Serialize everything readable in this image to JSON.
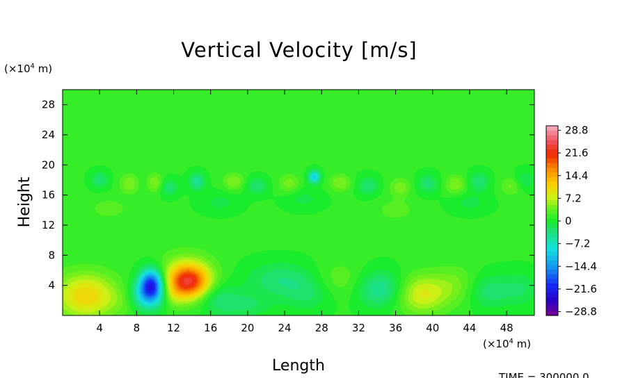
{
  "chart_data": {
    "type": "heatmap",
    "title": "Vertical Velocity [m/s]",
    "xlabel": "Length",
    "ylabel": "Height",
    "x_unit_prefix": "(×10",
    "x_unit_exp": "4",
    "x_unit_suffix": " m)",
    "y_unit_prefix": "(×10",
    "y_unit_exp": "4",
    "y_unit_suffix": " m)",
    "xlim": [
      0,
      51
    ],
    "ylim": [
      0,
      30
    ],
    "x_ticks": [
      4,
      8,
      12,
      16,
      20,
      24,
      28,
      32,
      36,
      40,
      44,
      48
    ],
    "y_ticks": [
      4,
      8,
      12,
      16,
      20,
      24,
      28
    ],
    "colorbar": {
      "min": -28.8,
      "max": 28.8,
      "levels": 41,
      "tick_labels": [
        "28.8",
        "21.6",
        "14.4",
        "7.2",
        "0",
        "−7.2",
        "−14.4",
        "−21.6",
        "−28.8"
      ]
    },
    "features": [
      {
        "x": 2.5,
        "y": 2.6,
        "value": 9.5,
        "sx": 2.3,
        "sy": 2.1
      },
      {
        "x": 9.6,
        "y": 4.2,
        "value": -19,
        "sx": 0.9,
        "sy": 1.4
      },
      {
        "x": 9.2,
        "y": 2.6,
        "value": -10,
        "sx": 1.4,
        "sy": 1.4
      },
      {
        "x": 13.6,
        "y": 4.5,
        "value": 17,
        "sx": 1.5,
        "sy": 1.5
      },
      {
        "x": 13.4,
        "y": 5.2,
        "value": 5,
        "sx": 2.2,
        "sy": 2.2
      },
      {
        "x": 11.8,
        "y": 2.6,
        "value": 3,
        "sx": 1.0,
        "sy": 1.2
      },
      {
        "x": 7.0,
        "y": 2.0,
        "value": 2,
        "sx": 1.4,
        "sy": 1.5
      },
      {
        "x": 16.8,
        "y": 2.2,
        "value": -4,
        "sx": 1.5,
        "sy": 1.5
      },
      {
        "x": 20.0,
        "y": 1.4,
        "value": -3,
        "sx": 1.8,
        "sy": 1.2
      },
      {
        "x": 23.5,
        "y": 4.8,
        "value": -4,
        "sx": 2.6,
        "sy": 1.6
      },
      {
        "x": 26.5,
        "y": 2.8,
        "value": -3,
        "sx": 2.0,
        "sy": 1.6
      },
      {
        "x": 30.0,
        "y": 4.6,
        "value": 2.5,
        "sx": 2.0,
        "sy": 1.8
      },
      {
        "x": 34.3,
        "y": 3.5,
        "value": -6,
        "sx": 1.8,
        "sy": 1.7
      },
      {
        "x": 38.8,
        "y": 2.8,
        "value": 7,
        "sx": 1.9,
        "sy": 1.8
      },
      {
        "x": 42.5,
        "y": 4.0,
        "value": 3,
        "sx": 1.8,
        "sy": 1.8
      },
      {
        "x": 46.0,
        "y": 3.2,
        "value": -4,
        "sx": 1.6,
        "sy": 1.6
      },
      {
        "x": 49.5,
        "y": 3.5,
        "value": -3,
        "sx": 1.4,
        "sy": 1.6
      },
      {
        "x": 27.2,
        "y": 18.4,
        "value": -11,
        "sx": 0.45,
        "sy": 0.6
      },
      {
        "x": 14.5,
        "y": 17.8,
        "value": -6,
        "sx": 0.6,
        "sy": 0.8
      },
      {
        "x": 4.0,
        "y": 18.0,
        "value": -4,
        "sx": 0.7,
        "sy": 0.8
      },
      {
        "x": 7.2,
        "y": 17.5,
        "value": 4,
        "sx": 0.7,
        "sy": 0.9
      },
      {
        "x": 10.0,
        "y": 17.6,
        "value": 4,
        "sx": 0.6,
        "sy": 0.9
      },
      {
        "x": 11.5,
        "y": 17.0,
        "value": -4,
        "sx": 0.7,
        "sy": 0.8
      },
      {
        "x": 18.5,
        "y": 17.8,
        "value": 4,
        "sx": 0.8,
        "sy": 0.8
      },
      {
        "x": 21.0,
        "y": 17.2,
        "value": -4,
        "sx": 0.8,
        "sy": 0.8
      },
      {
        "x": 24.5,
        "y": 17.5,
        "value": 3.5,
        "sx": 0.8,
        "sy": 0.9
      },
      {
        "x": 30.0,
        "y": 17.6,
        "value": 4,
        "sx": 0.8,
        "sy": 0.8
      },
      {
        "x": 33.0,
        "y": 17.2,
        "value": -4,
        "sx": 0.8,
        "sy": 0.9
      },
      {
        "x": 36.5,
        "y": 17.0,
        "value": 3.5,
        "sx": 0.8,
        "sy": 0.9
      },
      {
        "x": 39.5,
        "y": 17.5,
        "value": -4,
        "sx": 0.8,
        "sy": 0.9
      },
      {
        "x": 42.5,
        "y": 17.4,
        "value": 4,
        "sx": 0.8,
        "sy": 0.9
      },
      {
        "x": 45.0,
        "y": 17.8,
        "value": -4,
        "sx": 0.8,
        "sy": 0.9
      },
      {
        "x": 48.5,
        "y": 17.2,
        "value": 3,
        "sx": 0.8,
        "sy": 0.9
      },
      {
        "x": 50.0,
        "y": 18.0,
        "value": -3,
        "sx": 0.8,
        "sy": 0.9
      },
      {
        "x": 5.0,
        "y": 14.2,
        "value": 2,
        "sx": 1.5,
        "sy": 1.0
      },
      {
        "x": 17.0,
        "y": 15.0,
        "value": -2,
        "sx": 1.5,
        "sy": 1.0
      },
      {
        "x": 26.0,
        "y": 15.5,
        "value": -2,
        "sx": 1.5,
        "sy": 1.0
      },
      {
        "x": 36.0,
        "y": 14.0,
        "value": 2,
        "sx": 1.5,
        "sy": 1.0
      },
      {
        "x": 44.0,
        "y": 15.0,
        "value": -2,
        "sx": 1.5,
        "sy": 1.0
      }
    ]
  },
  "footer": {
    "time_label": "TIME = 300000.0"
  }
}
